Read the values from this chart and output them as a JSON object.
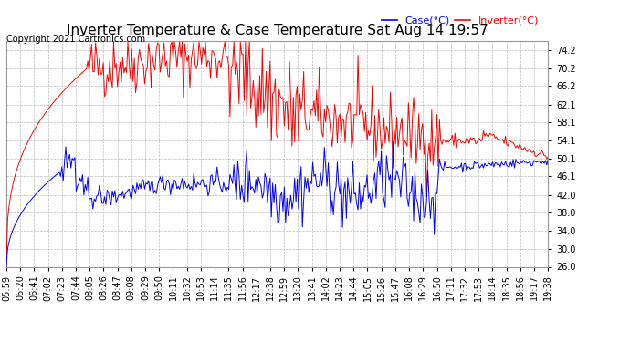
{
  "title": "Inverter Temperature & Case Temperature Sat Aug 14 19:57",
  "copyright": "Copyright 2021 Cartronics.com",
  "legend_case": "Case(°C)",
  "legend_inverter": "Inverter(°C)",
  "ylim": [
    26.0,
    76.2
  ],
  "yticks": [
    26.0,
    30.0,
    34.0,
    38.0,
    42.0,
    46.1,
    50.1,
    54.1,
    58.1,
    62.1,
    66.2,
    70.2,
    74.2
  ],
  "bg_color": "#ffffff",
  "grid_color": "#bbbbbb",
  "case_color": "blue",
  "inverter_color": "red",
  "title_fontsize": 11,
  "tick_fontsize": 7,
  "num_points": 420,
  "x_tick_labels": [
    "05:59",
    "06:20",
    "06:41",
    "07:02",
    "07:23",
    "07:44",
    "08:05",
    "08:26",
    "08:47",
    "09:08",
    "09:29",
    "09:50",
    "10:11",
    "10:32",
    "10:53",
    "11:14",
    "11:35",
    "11:56",
    "12:17",
    "12:38",
    "12:59",
    "13:20",
    "13:41",
    "14:02",
    "14:23",
    "14:44",
    "15:05",
    "15:26",
    "15:47",
    "16:08",
    "16:29",
    "16:50",
    "17:11",
    "17:32",
    "17:53",
    "18:14",
    "18:35",
    "18:56",
    "19:17",
    "19:38"
  ]
}
